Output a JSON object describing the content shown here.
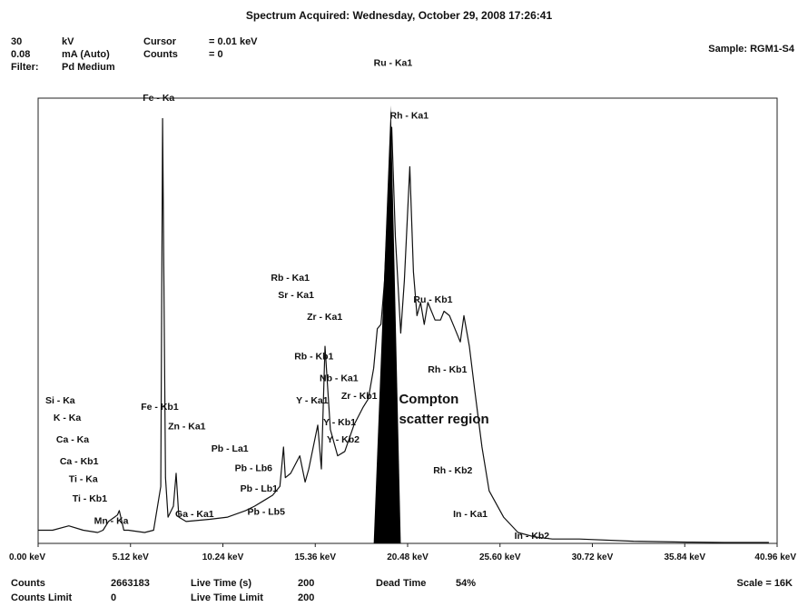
{
  "header": {
    "title": "Spectrum Acquired: Wednesday, October 29, 2008 17:26:41",
    "voltage_value": "30",
    "voltage_unit": "kV",
    "current_value": "0.08",
    "current_unit": "mA (Auto)",
    "filter_label": "Filter:",
    "filter_value": "Pd Medium",
    "cursor_label": "Cursor",
    "cursor_value": "= 0.01 keV",
    "counts_label": "Counts",
    "counts_value": "= 0",
    "sample_label": "Sample: RGM1-S4"
  },
  "footer": {
    "counts_label": "Counts",
    "counts_value": "2663183",
    "counts_limit_label": "Counts Limit",
    "counts_limit_value": "0",
    "live_time_label": "Live Time (s)",
    "live_time_value": "200",
    "live_time_limit_label": "Live Time Limit",
    "live_time_limit_value": "200",
    "dead_time_label": "Dead Time",
    "dead_time_value": "54%",
    "scale_label": "Scale = 16K"
  },
  "chart_data": {
    "type": "line",
    "xlim": [
      0,
      40.96
    ],
    "ylim": [
      0,
      1
    ],
    "xticks": [
      {
        "value": 0,
        "label": "0.00 keV"
      },
      {
        "value": 5.12,
        "label": "5.12 keV"
      },
      {
        "value": 10.24,
        "label": "10.24 keV"
      },
      {
        "value": 15.36,
        "label": "15.36 keV"
      },
      {
        "value": 20.48,
        "label": "20.48 keV"
      },
      {
        "value": 25.6,
        "label": "25.60 keV"
      },
      {
        "value": 30.72,
        "label": "30.72 keV"
      },
      {
        "value": 35.84,
        "label": "35.84 keV"
      },
      {
        "value": 40.96,
        "label": "40.96 keV"
      }
    ],
    "spectrum": {
      "x": [
        0.0,
        0.8,
        1.7,
        2.5,
        3.3,
        3.6,
        3.9,
        4.4,
        4.5,
        4.75,
        5.0,
        5.9,
        6.4,
        6.8,
        6.9,
        7.06,
        7.2,
        7.5,
        7.65,
        7.8,
        8.2,
        9.5,
        10.5,
        11.5,
        12.0,
        12.6,
        13.0,
        13.4,
        13.6,
        13.7,
        14.0,
        14.5,
        14.8,
        15.0,
        15.5,
        15.7,
        15.9,
        16.2,
        16.6,
        17.0,
        17.5,
        18.0,
        18.3,
        18.6,
        18.8,
        19.0,
        19.2,
        19.4,
        19.6,
        19.8,
        20.1,
        20.3,
        20.6,
        20.8,
        21.0,
        21.2,
        21.4,
        21.6,
        22.0,
        22.3,
        22.5,
        22.8,
        23.1,
        23.4,
        23.6,
        23.9,
        24.2,
        24.6,
        25.0,
        25.8,
        26.6,
        27.5,
        28.5,
        30.0,
        33.0,
        36.0,
        38.0,
        40.5
      ],
      "y": [
        0.03,
        0.03,
        0.04,
        0.03,
        0.025,
        0.03,
        0.05,
        0.065,
        0.075,
        0.03,
        0.03,
        0.025,
        0.03,
        0.13,
        0.97,
        0.15,
        0.06,
        0.085,
        0.16,
        0.06,
        0.05,
        0.055,
        0.06,
        0.075,
        0.085,
        0.1,
        0.11,
        0.13,
        0.22,
        0.15,
        0.16,
        0.2,
        0.14,
        0.17,
        0.27,
        0.17,
        0.45,
        0.26,
        0.2,
        0.21,
        0.27,
        0.31,
        0.33,
        0.4,
        0.49,
        0.5,
        0.6,
        0.78,
        0.95,
        0.7,
        0.48,
        0.6,
        0.86,
        0.62,
        0.52,
        0.55,
        0.5,
        0.55,
        0.51,
        0.51,
        0.53,
        0.52,
        0.49,
        0.46,
        0.52,
        0.45,
        0.35,
        0.22,
        0.12,
        0.06,
        0.025,
        0.015,
        0.01,
        0.01,
        0.005,
        0.003,
        0.002,
        0.002
      ]
    },
    "compton_band": {
      "x": [
        18.6,
        19.55,
        20.1
      ],
      "top": 1.0
    },
    "peak_labels": [
      {
        "text": "Fe - Ka",
        "x": 5.8,
        "y": 1.01
      },
      {
        "text": "Ru - Ka1",
        "x": 18.6,
        "y": 1.09
      },
      {
        "text": "Rh - Ka1",
        "x": 19.5,
        "y": 0.97
      },
      {
        "text": "Rb - Ka1",
        "x": 12.9,
        "y": 0.6
      },
      {
        "text": "Sr - Ka1",
        "x": 13.3,
        "y": 0.56
      },
      {
        "text": "Zr - Ka1",
        "x": 14.9,
        "y": 0.51
      },
      {
        "text": "Ru - Kb1",
        "x": 20.8,
        "y": 0.55
      },
      {
        "text": "Rb - Kb1",
        "x": 14.2,
        "y": 0.42
      },
      {
        "text": "Nb - Ka1",
        "x": 15.6,
        "y": 0.37
      },
      {
        "text": "Rh - Kb1",
        "x": 21.6,
        "y": 0.39
      },
      {
        "text": "Zr - Kb1",
        "x": 16.8,
        "y": 0.33
      },
      {
        "text": "Y - Ka1",
        "x": 14.3,
        "y": 0.32
      },
      {
        "text": "Y - Kb1",
        "x": 15.8,
        "y": 0.27
      },
      {
        "text": "Y - Kb2",
        "x": 16.0,
        "y": 0.23
      },
      {
        "text": "Rh - Kb2",
        "x": 21.9,
        "y": 0.16
      },
      {
        "text": "In - Ka1",
        "x": 23.0,
        "y": 0.06
      },
      {
        "text": "In - Kb2",
        "x": 26.4,
        "y": 0.01
      },
      {
        "text": "Si - Ka",
        "x": 0.4,
        "y": 0.32
      },
      {
        "text": "K - Ka",
        "x": 0.85,
        "y": 0.28
      },
      {
        "text": "Ca - Ka",
        "x": 1.0,
        "y": 0.23
      },
      {
        "text": "Ca - Kb1",
        "x": 1.2,
        "y": 0.18
      },
      {
        "text": "Ti - Ka",
        "x": 1.7,
        "y": 0.14
      },
      {
        "text": "Ti - Kb1",
        "x": 1.9,
        "y": 0.095
      },
      {
        "text": "Mn - Ka",
        "x": 3.1,
        "y": 0.045
      },
      {
        "text": "Fe - Kb1",
        "x": 5.7,
        "y": 0.305
      },
      {
        "text": "Zn - Ka1",
        "x": 7.2,
        "y": 0.26
      },
      {
        "text": "Pb - La1",
        "x": 9.6,
        "y": 0.21
      },
      {
        "text": "Pb - Lb6",
        "x": 10.9,
        "y": 0.165
      },
      {
        "text": "Ga - Ka1",
        "x": 7.6,
        "y": 0.06
      },
      {
        "text": "Pb - Lb1",
        "x": 11.2,
        "y": 0.118
      },
      {
        "text": "Pb - Lb5",
        "x": 11.6,
        "y": 0.065
      }
    ],
    "annotation": {
      "line1": "Compton",
      "line2": "scatter region",
      "x": 20.0,
      "y": 0.32
    }
  }
}
